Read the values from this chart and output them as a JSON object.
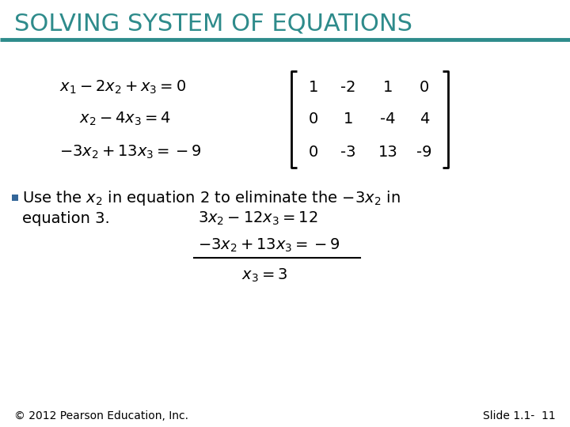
{
  "title": "SOLVING SYSTEM OF EQUATIONS",
  "title_color": "#2E8B8B",
  "title_fontsize": 22,
  "bg_color": "#FFFFFF",
  "line_color": "#2E8B8B",
  "body_color": "#000000",
  "footer_left": "© 2012 Pearson Education, Inc.",
  "footer_right": "Slide 1.1-  11",
  "footer_fontsize": 10,
  "eq1": "$x_1 - 2x_2 + x_3 = 0$",
  "eq2": "$x_2 - 4x_3 = 4$",
  "eq3": "$-3x_2 + 13x_3 = -9$",
  "matrix_rows": [
    [
      "1",
      "-2",
      "1",
      "0"
    ],
    [
      "0",
      "1",
      "-4",
      "4"
    ],
    [
      "0",
      "-3",
      "13",
      "-9"
    ]
  ],
  "bullet_text1": "Use the $x_2$ in equation 2 to eliminate the $-3x_2$ in",
  "bullet_text2": "equation 3.",
  "step_eq1": "$3x_2 - 12x_3 = 12$",
  "step_eq2": "$-3x_2 + 13x_3 = -9$",
  "step_eq3": "$x_3 = 3$",
  "bullet_color": "#336699",
  "eq_fontsize": 14,
  "body_fontsize": 14,
  "matrix_fontsize": 14
}
